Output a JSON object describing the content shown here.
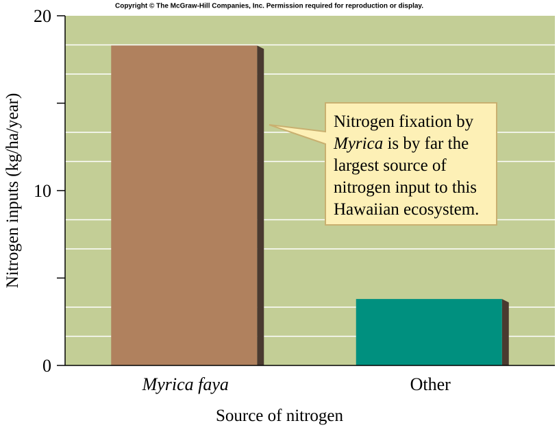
{
  "copyright": "Copyright © The McGraw-Hill Companies, Inc. Permission required for reproduction or display.",
  "chart_data": {
    "type": "bar",
    "ylabel": "Nitrogen inputs (kg/ha/year)",
    "xlabel": "Source of nitrogen",
    "categories": [
      "Myrica faya",
      "Other"
    ],
    "category_italic": [
      true,
      false
    ],
    "values": [
      18.3,
      3.8
    ],
    "colors": [
      "#b0815e",
      "#00907f"
    ],
    "ylim": [
      0,
      20
    ],
    "yticks": [
      0,
      10,
      20
    ],
    "yminor": [
      5,
      15
    ],
    "gridlines": [
      1.667,
      3.333,
      6.667,
      8.333,
      11.667,
      13.333,
      16.667,
      18.333
    ],
    "annotation": [
      [
        {
          "text": "Nitrogen fixation by",
          "italic": false
        }
      ],
      [
        {
          "text": "Myrica",
          "italic": true
        },
        {
          "text": " is by far the",
          "italic": false
        }
      ],
      [
        {
          "text": "largest source of",
          "italic": false
        }
      ],
      [
        {
          "text": "nitrogen input to this",
          "italic": false
        }
      ],
      [
        {
          "text": "Hawaiian ecosystem.",
          "italic": false
        }
      ]
    ]
  }
}
